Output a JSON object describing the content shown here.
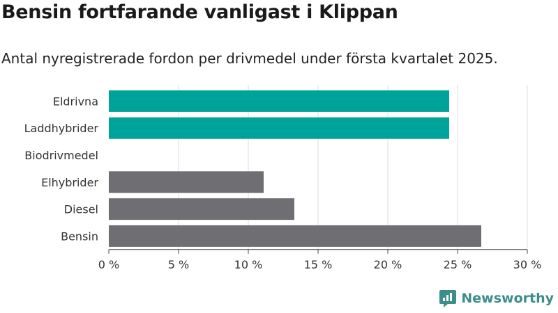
{
  "title": "Bensin fortfarande vanligast i Klippan",
  "subtitle": "Antal nyregistrerade fordon per drivmedel under första kvartalet 2025.",
  "brand": {
    "name": "Newsworthy",
    "logo_icon": "newsworthy-logo-icon",
    "color": "#3b8f8a"
  },
  "chart_data": {
    "type": "bar",
    "orientation": "horizontal",
    "categories": [
      "Eldrivna",
      "Laddhybrider",
      "Biodrivmedel",
      "Elhybrider",
      "Diesel",
      "Bensin"
    ],
    "values": [
      24.4,
      24.4,
      0,
      11.1,
      13.3,
      26.7
    ],
    "bar_colors": [
      "#00a39a",
      "#00a39a",
      "#00a39a",
      "#6f6e73",
      "#6f6e73",
      "#6f6e73"
    ],
    "xlim": [
      0,
      30
    ],
    "x_ticks": [
      0,
      5,
      10,
      15,
      20,
      25,
      30
    ],
    "x_tick_labels": [
      "0 %",
      "5 %",
      "10 %",
      "15 %",
      "20 %",
      "25 %",
      "30 %"
    ],
    "grid": "vertical",
    "title": "Bensin fortfarande vanligast i Klippan",
    "subtitle": "Antal nyregistrerade fordon per drivmedel under första kvartalet 2025.",
    "xlabel": "",
    "ylabel": ""
  }
}
